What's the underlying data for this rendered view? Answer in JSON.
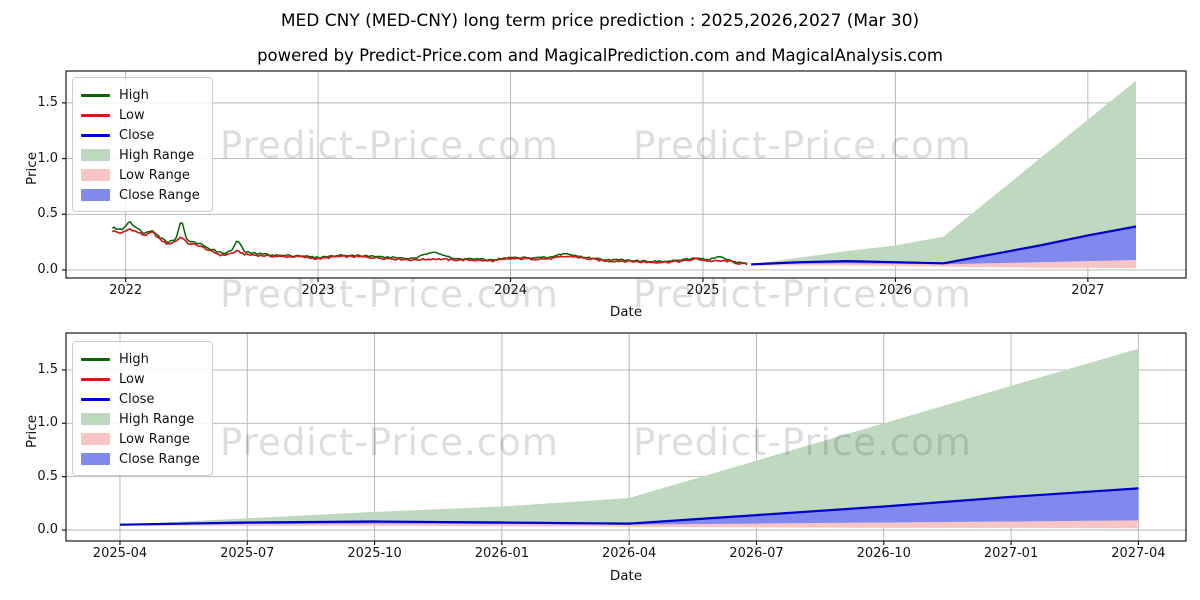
{
  "title": "MED CNY (MED-CNY) long term price prediction : 2025,2026,2027 (Mar 30)",
  "subtitle": "powered by Predict-Price.com and MagicalPrediction.com and MagicalAnalysis.com",
  "watermark_text": "Predict-Price.com",
  "axis_labels": {
    "x": "Date",
    "y": "Price"
  },
  "colors": {
    "high_line": "#066406",
    "low_line": "#cf1b1b",
    "close_line": "#0000cd",
    "high_range_fill": "#bfd9bf",
    "low_range_fill": "#f9c4c4",
    "close_range_fill": "#8289ee",
    "grid": "#b3b3b3",
    "axis": "#1a1a1a"
  },
  "legend_items": [
    {
      "label": "High",
      "swatch": "line",
      "color": "#066406"
    },
    {
      "label": "Low",
      "swatch": "line",
      "color": "#cf1b1b"
    },
    {
      "label": "Close",
      "swatch": "line",
      "color": "#0000cd"
    },
    {
      "label": "High Range",
      "swatch": "rect",
      "color": "#bfd9bf"
    },
    {
      "label": "Low Range",
      "swatch": "rect",
      "color": "#f9c4c4"
    },
    {
      "label": "Close Range",
      "swatch": "rect",
      "color": "#8289ee"
    }
  ],
  "chart_data": [
    {
      "type": "line",
      "title": "",
      "xlabel": "Date",
      "ylabel": "Price",
      "legend_position": "upper left",
      "grid": true,
      "xtick_labels": [
        "2022",
        "2023",
        "2024",
        "2025",
        "2026",
        "2027"
      ],
      "ytick_labels": [
        "0.0",
        "0.5",
        "1.0",
        "1.5"
      ],
      "ytick_values": [
        0.0,
        0.5,
        1.0,
        1.5
      ],
      "ylim": [
        -0.07,
        1.79
      ],
      "series": {
        "historical_dates_frac": [
          2021.93,
          2021.98,
          2022.02,
          2022.06,
          2022.1,
          2022.14,
          2022.18,
          2022.22,
          2022.26,
          2022.29,
          2022.32,
          2022.38,
          2022.44,
          2022.5,
          2022.55,
          2022.58,
          2022.62,
          2022.7,
          2022.8,
          2022.9,
          2023.0,
          2023.1,
          2023.2,
          2023.3,
          2023.4,
          2023.5,
          2023.6,
          2023.7,
          2023.8,
          2023.9,
          2024.0,
          2024.1,
          2024.2,
          2024.28,
          2024.33,
          2024.4,
          2024.5,
          2024.6,
          2024.7,
          2024.8,
          2024.9,
          2024.97,
          2025.03,
          2025.08,
          2025.13,
          2025.18,
          2025.23
        ],
        "historical_high": [
          0.38,
          0.36,
          0.44,
          0.37,
          0.33,
          0.36,
          0.29,
          0.25,
          0.28,
          0.45,
          0.26,
          0.24,
          0.19,
          0.15,
          0.17,
          0.27,
          0.16,
          0.145,
          0.13,
          0.13,
          0.11,
          0.13,
          0.13,
          0.12,
          0.11,
          0.1,
          0.17,
          0.1,
          0.1,
          0.09,
          0.11,
          0.11,
          0.11,
          0.15,
          0.13,
          0.11,
          0.09,
          0.09,
          0.08,
          0.075,
          0.09,
          0.11,
          0.09,
          0.12,
          0.09,
          0.07,
          0.055
        ],
        "historical_low": [
          0.35,
          0.33,
          0.37,
          0.34,
          0.31,
          0.34,
          0.27,
          0.23,
          0.26,
          0.3,
          0.24,
          0.22,
          0.17,
          0.13,
          0.15,
          0.17,
          0.14,
          0.13,
          0.12,
          0.12,
          0.1,
          0.12,
          0.12,
          0.11,
          0.1,
          0.09,
          0.1,
          0.09,
          0.09,
          0.08,
          0.1,
          0.1,
          0.1,
          0.12,
          0.12,
          0.1,
          0.08,
          0.08,
          0.07,
          0.07,
          0.08,
          0.1,
          0.08,
          0.08,
          0.08,
          0.06,
          0.05
        ],
        "prediction_dates": [
          "2025-04",
          "2025-07",
          "2025-10",
          "2026-01",
          "2026-04",
          "2026-07",
          "2026-10",
          "2027-01",
          "2027-04"
        ],
        "prediction_close": [
          0.05,
          0.07,
          0.08,
          0.07,
          0.06,
          0.14,
          0.22,
          0.31,
          0.39
        ],
        "prediction_high_range_top": [
          0.05,
          0.11,
          0.17,
          0.22,
          0.3,
          0.65,
          1.0,
          1.35,
          1.7
        ],
        "prediction_low_range_top": [
          0.045,
          0.055,
          0.06,
          0.055,
          0.05,
          0.06,
          0.07,
          0.08,
          0.09
        ],
        "prediction_low_range_bottom": [
          0.04,
          0.04,
          0.04,
          0.035,
          0.03,
          0.025,
          0.02,
          0.02,
          0.015
        ]
      }
    },
    {
      "type": "line",
      "title": "",
      "xlabel": "Date",
      "ylabel": "Price",
      "legend_position": "upper left",
      "grid": true,
      "xtick_labels": [
        "2025-04",
        "2025-07",
        "2025-10",
        "2026-01",
        "2026-04",
        "2026-07",
        "2026-10",
        "2027-01",
        "2027-04"
      ],
      "ytick_labels": [
        "0.0",
        "0.5",
        "1.0",
        "1.5"
      ],
      "ytick_values": [
        0.0,
        0.5,
        1.0,
        1.5
      ],
      "ylim": [
        -0.1,
        1.85
      ],
      "series": {
        "prediction_dates": [
          "2025-04",
          "2025-07",
          "2025-10",
          "2026-01",
          "2026-04",
          "2026-07",
          "2026-10",
          "2027-01",
          "2027-04"
        ],
        "prediction_close": [
          0.05,
          0.07,
          0.08,
          0.07,
          0.06,
          0.14,
          0.22,
          0.31,
          0.39
        ],
        "prediction_high_range_top": [
          0.05,
          0.11,
          0.17,
          0.22,
          0.3,
          0.65,
          1.0,
          1.35,
          1.7
        ],
        "prediction_low_range_top": [
          0.045,
          0.055,
          0.06,
          0.055,
          0.05,
          0.06,
          0.07,
          0.08,
          0.09
        ],
        "prediction_low_range_bottom": [
          0.04,
          0.04,
          0.04,
          0.035,
          0.03,
          0.025,
          0.02,
          0.02,
          0.015
        ]
      }
    }
  ]
}
